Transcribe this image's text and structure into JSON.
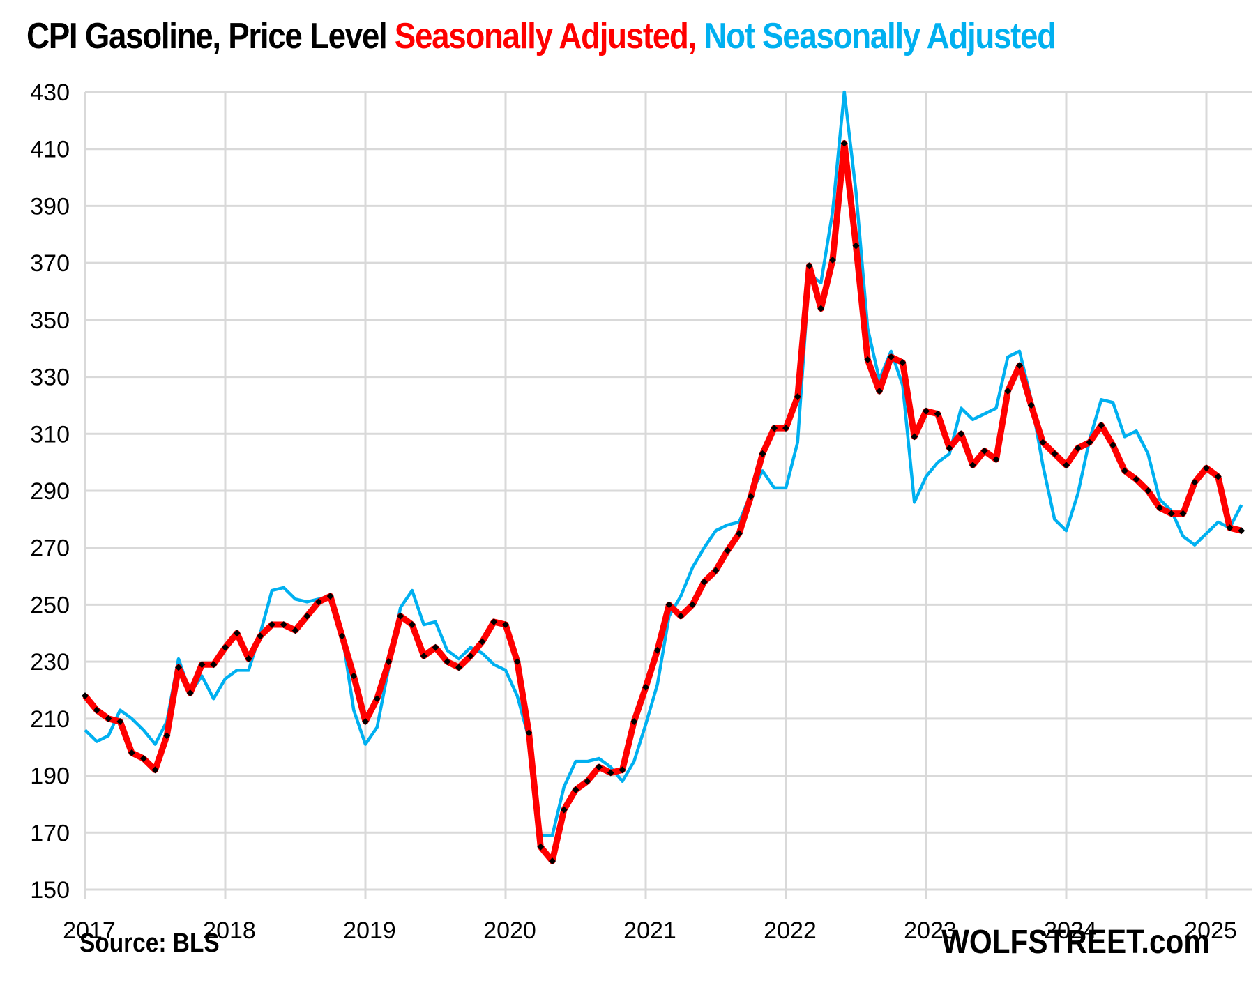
{
  "header": {
    "title_main": "CPI Gasoline, Price Level ",
    "title_sa": "Seasonally Adjusted, ",
    "title_nsa": "Not Seasonally Adjusted"
  },
  "footer": {
    "source": "Source: BLS",
    "brand": "WOLFSTREET.com"
  },
  "colors": {
    "sa": "#ff0000",
    "sa_markers": "#000000",
    "nsa": "#00b0f0",
    "grid": "#d9d9d9"
  },
  "chart_data": {
    "type": "line",
    "title": "CPI Gasoline, Price Level Seasonally Adjusted, Not Seasonally Adjusted",
    "xlabel": "",
    "ylabel": "",
    "x_start": "2017-01",
    "x_frequency": "monthly",
    "xlim": [
      2017,
      2025.33
    ],
    "ylim": [
      150,
      430
    ],
    "y_ticks": [
      "150",
      "170",
      "190",
      "210",
      "230",
      "250",
      "270",
      "290",
      "310",
      "330",
      "350",
      "370",
      "390",
      "410",
      "430"
    ],
    "x_ticks": [
      "2017",
      "2018",
      "2019",
      "2020",
      "2021",
      "2022",
      "2023",
      "2024",
      "2025"
    ],
    "grid": true,
    "legend": "in title",
    "series": [
      {
        "name": "Seasonally Adjusted",
        "color": "#ff0000",
        "values": [
          218,
          213,
          210,
          209,
          198,
          196,
          192,
          204,
          228,
          219,
          229,
          229,
          235,
          240,
          231,
          239,
          243,
          243,
          241,
          246,
          251,
          253,
          239,
          225,
          209,
          217,
          230,
          246,
          243,
          232,
          235,
          230,
          228,
          232,
          237,
          244,
          243,
          230,
          205,
          165,
          160,
          178,
          185,
          188,
          193,
          191,
          192,
          209,
          221,
          234,
          250,
          246,
          250,
          258,
          262,
          269,
          275,
          288,
          303,
          312,
          312,
          323,
          369,
          354,
          371,
          412,
          376,
          336,
          325,
          337,
          335,
          309,
          318,
          317,
          305,
          310,
          299,
          304,
          301,
          325,
          334,
          320,
          307,
          303,
          299,
          305,
          307,
          313,
          306,
          297,
          294,
          290,
          284,
          282,
          282,
          293,
          298,
          295,
          277,
          276
        ]
      },
      {
        "name": "Not Seasonally Adjusted",
        "color": "#00b0f0",
        "values": [
          206,
          202,
          204,
          213,
          210,
          206,
          201,
          209,
          231,
          219,
          225,
          217,
          224,
          227,
          227,
          240,
          255,
          256,
          252,
          251,
          252,
          253,
          240,
          213,
          201,
          207,
          228,
          249,
          255,
          243,
          244,
          234,
          231,
          235,
          233,
          229,
          227,
          218,
          203,
          169,
          169,
          186,
          195,
          195,
          196,
          193,
          188,
          195,
          208,
          222,
          246,
          253,
          263,
          270,
          276,
          278,
          279,
          289,
          297,
          291,
          291,
          307,
          366,
          363,
          388,
          430,
          395,
          347,
          329,
          339,
          327,
          286,
          295,
          300,
          303,
          319,
          315,
          317,
          319,
          337,
          339,
          322,
          299,
          280,
          276,
          289,
          308,
          322,
          321,
          309,
          311,
          303,
          287,
          283,
          274,
          271,
          275,
          279,
          277,
          285
        ]
      }
    ]
  }
}
